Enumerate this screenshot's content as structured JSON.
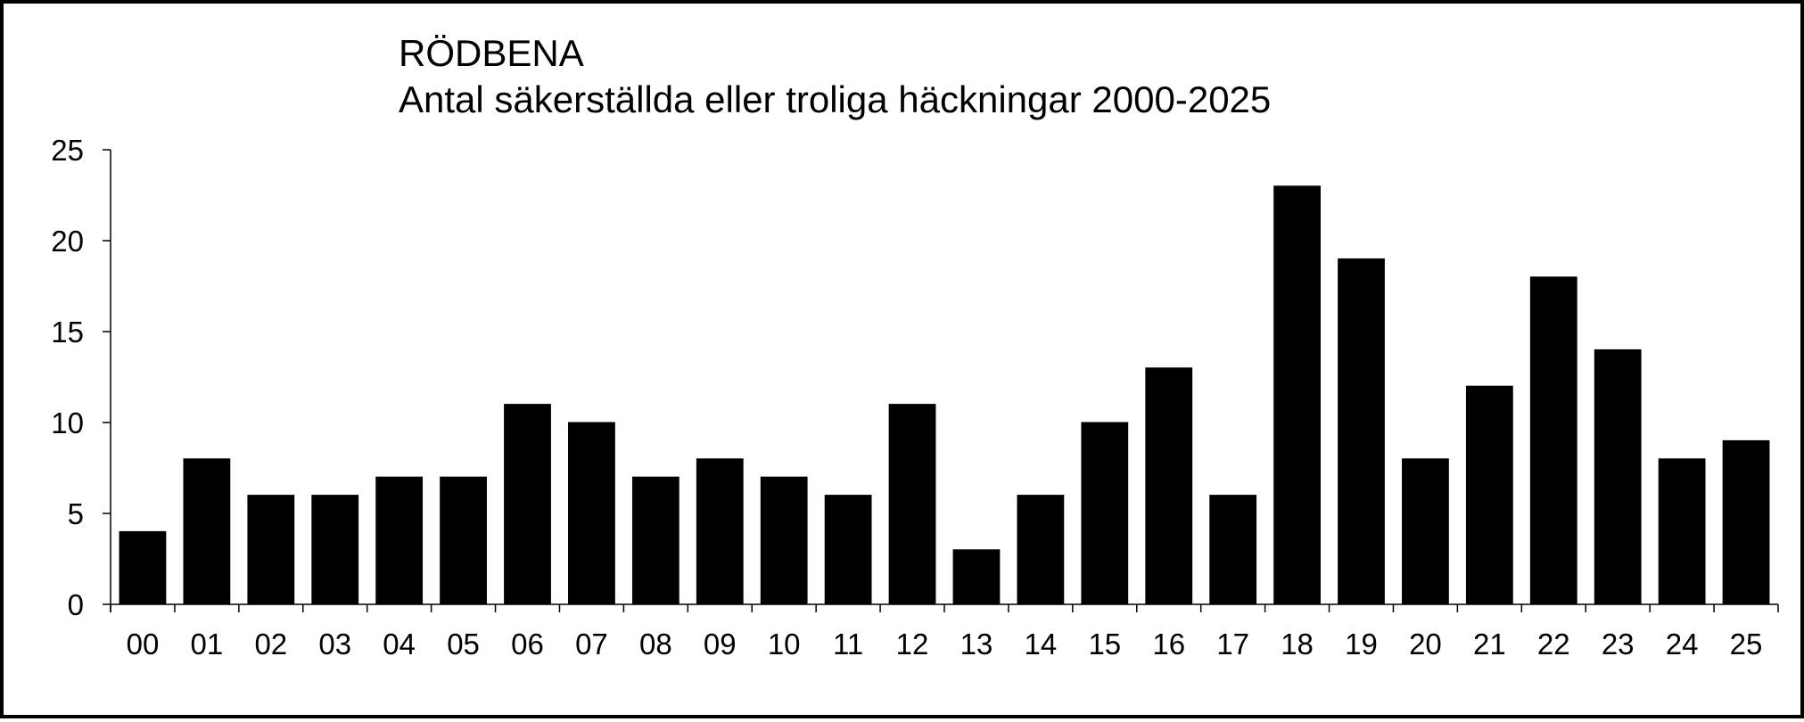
{
  "chart_data": {
    "type": "bar",
    "title": "RÖDBENA",
    "subtitle": "Antal säkerställda eller troliga häckningar 2000-2025",
    "xlabel": "",
    "ylabel": "",
    "categories": [
      "00",
      "01",
      "02",
      "03",
      "04",
      "05",
      "06",
      "07",
      "08",
      "09",
      "10",
      "11",
      "12",
      "13",
      "14",
      "15",
      "16",
      "17",
      "18",
      "19",
      "20",
      "21",
      "22",
      "23",
      "24",
      "25"
    ],
    "values": [
      4,
      8,
      6,
      6,
      7,
      7,
      11,
      10,
      7,
      8,
      7,
      6,
      11,
      3,
      6,
      10,
      13,
      6,
      23,
      19,
      8,
      12,
      18,
      14,
      8,
      9
    ],
    "ylim": [
      0,
      25
    ],
    "yticks": [
      0,
      5,
      10,
      15,
      20,
      25
    ],
    "grid": false,
    "legend": "none",
    "bar_color": "#000000"
  }
}
